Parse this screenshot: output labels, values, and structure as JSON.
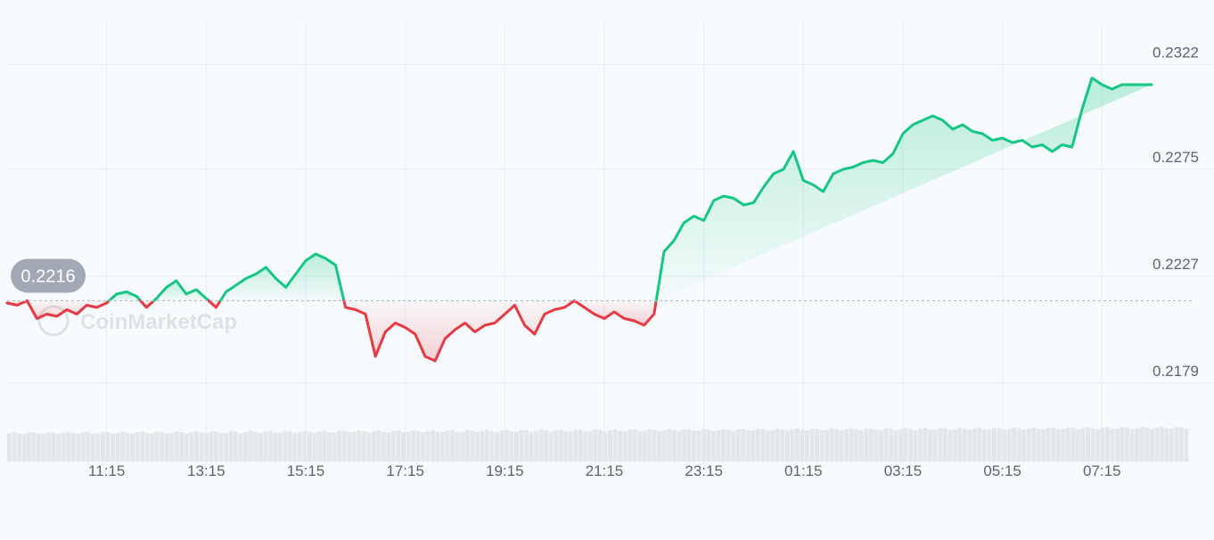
{
  "chart_data": {
    "type": "area",
    "watermark": "CoinMarketCap",
    "reference_value": 0.2216,
    "reference_label": "0.2216",
    "ylim": [
      0.2163,
      0.2339
    ],
    "y_ticks": [
      {
        "value": 0.2322,
        "label": "0.2322"
      },
      {
        "value": 0.2275,
        "label": "0.2275"
      },
      {
        "value": 0.2227,
        "label": "0.2227"
      },
      {
        "value": 0.2179,
        "label": "0.2179"
      }
    ],
    "x_ticks": [
      "11:15",
      "13:15",
      "15:15",
      "17:15",
      "19:15",
      "21:15",
      "23:15",
      "01:15",
      "03:15",
      "05:15",
      "07:15"
    ],
    "x_range_hours": [
      -2.0,
      21.75
    ],
    "grid": true,
    "colors": {
      "up": "#16c784",
      "down": "#ea3943",
      "grid": "#e9eef3",
      "badge": "#a3a9b4",
      "volume": "#e3e7ec",
      "axis_text": "#5a6475"
    },
    "series": [
      {
        "x_offset_hours": [
          -2.0,
          -1.8,
          -1.6,
          -1.4,
          -1.2,
          -1.0,
          -0.8,
          -0.6,
          -0.4,
          -0.2,
          0.0,
          0.2,
          0.4,
          0.6,
          0.8,
          1.0,
          1.2,
          1.4,
          1.6,
          1.8,
          2.0,
          2.2,
          2.4,
          2.6,
          2.8,
          3.0,
          3.2,
          3.4,
          3.6,
          3.8,
          4.0,
          4.2,
          4.4,
          4.6,
          4.8,
          5.0,
          5.2,
          5.4,
          5.6,
          5.8,
          6.0,
          6.2,
          6.4,
          6.6,
          6.8,
          7.0,
          7.2,
          7.4,
          7.6,
          7.8,
          8.0,
          8.2,
          8.4,
          8.6,
          8.8,
          9.0,
          9.2,
          9.4,
          9.6,
          9.8,
          10.0,
          10.2,
          10.4,
          10.6,
          10.8,
          11.0,
          11.2,
          11.4,
          11.6,
          11.8,
          12.0,
          12.2,
          12.4,
          12.6,
          12.8,
          13.0,
          13.2,
          13.4,
          13.6,
          13.8,
          14.0,
          14.2,
          14.4,
          14.6,
          14.8,
          15.0,
          15.2,
          15.4,
          15.6,
          15.8,
          16.0,
          16.2,
          16.4,
          16.6,
          16.8,
          17.0,
          17.2,
          17.4,
          17.6,
          17.8,
          18.0,
          18.2,
          18.4,
          18.6,
          18.8,
          19.0,
          19.2,
          19.4,
          19.6,
          19.8,
          20.0,
          20.2,
          20.4,
          20.6,
          20.8,
          21.0,
          21.2,
          21.4,
          21.6,
          21.75
        ],
        "price": [
          0.2215,
          0.2214,
          0.2216,
          0.2208,
          0.221,
          0.2209,
          0.2212,
          0.221,
          0.2214,
          0.2213,
          0.2215,
          0.2219,
          0.222,
          0.2218,
          0.2213,
          0.2217,
          0.2222,
          0.2225,
          0.2219,
          0.2221,
          0.2217,
          0.2213,
          0.222,
          0.2223,
          0.2226,
          0.2228,
          0.2231,
          0.2226,
          0.2222,
          0.2228,
          0.2234,
          0.2237,
          0.2235,
          0.2232,
          0.2213,
          0.2212,
          0.221,
          0.2191,
          0.2202,
          0.2206,
          0.2204,
          0.2201,
          0.2191,
          0.2189,
          0.2199,
          0.2203,
          0.2206,
          0.2202,
          0.2205,
          0.2206,
          0.221,
          0.2214,
          0.2205,
          0.2201,
          0.221,
          0.2212,
          0.2213,
          0.2216,
          0.2213,
          0.221,
          0.2208,
          0.2211,
          0.2208,
          0.2207,
          0.2205,
          0.221,
          0.2238,
          0.2243,
          0.2251,
          0.2254,
          0.2252,
          0.2261,
          0.2263,
          0.2262,
          0.2259,
          0.226,
          0.2267,
          0.2273,
          0.2275,
          0.2283,
          0.227,
          0.2268,
          0.2265,
          0.2273,
          0.2275,
          0.2276,
          0.2278,
          0.2279,
          0.2278,
          0.2282,
          0.2291,
          0.2295,
          0.2297,
          0.2299,
          0.2297,
          0.2293,
          0.2295,
          0.2292,
          0.2291,
          0.2288,
          0.2289,
          0.2287,
          0.2288,
          0.2285,
          0.2286,
          0.2283,
          0.2286,
          0.2285,
          0.2302,
          0.2316,
          0.2313,
          0.2311,
          0.2313,
          0.2313,
          0.2313,
          0.2313
        ]
      }
    ]
  }
}
